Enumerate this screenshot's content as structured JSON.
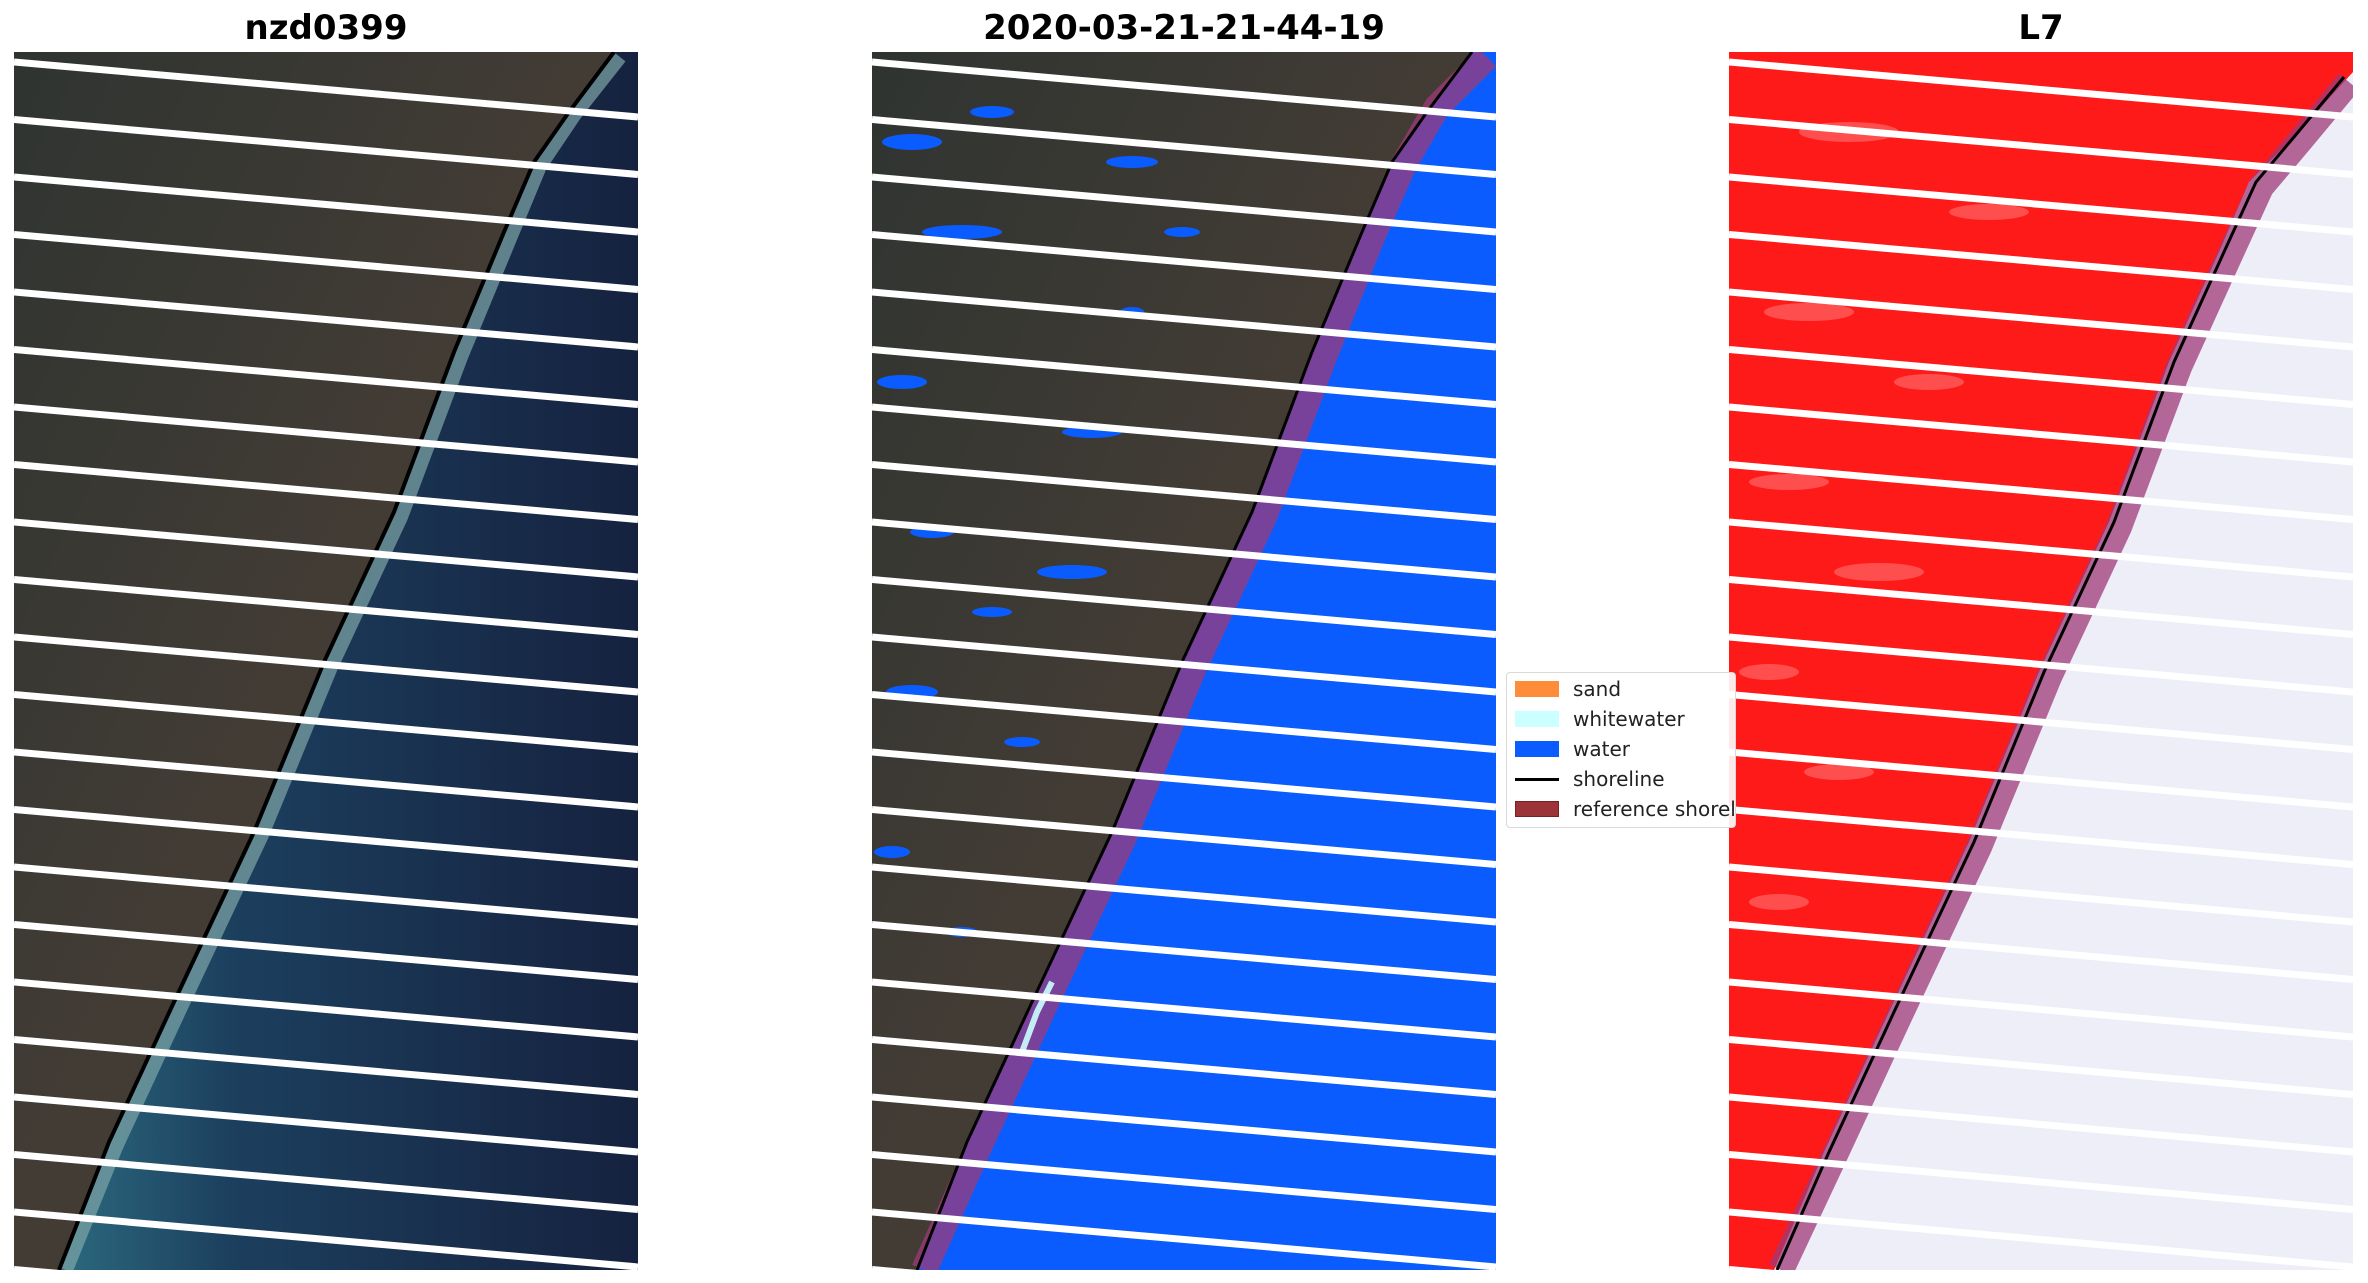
{
  "panels": [
    {
      "title": "nzd0399"
    },
    {
      "title": "2020-03-21-21-44-19"
    },
    {
      "title": "L7"
    }
  ],
  "legend": {
    "items": [
      {
        "label": "sand",
        "color": "#ff8c38",
        "kind": "patch"
      },
      {
        "label": "whitewater",
        "color": "#ccffff",
        "kind": "patch"
      },
      {
        "label": "water",
        "color": "#0a5cff",
        "kind": "patch"
      },
      {
        "label": "shoreline",
        "color": "#000000",
        "kind": "line"
      },
      {
        "label": "reference shoreline",
        "color": "#9b3338",
        "kind": "patch"
      }
    ]
  },
  "colors": {
    "land": "#3b3a33",
    "ocean_near": "#2f6f84",
    "ocean_far": "#162440",
    "classified_water": "#0a5cff",
    "index_land": "#ff1a1a",
    "index_water": "#eeeef8",
    "reference_band": "#9e3a78"
  }
}
